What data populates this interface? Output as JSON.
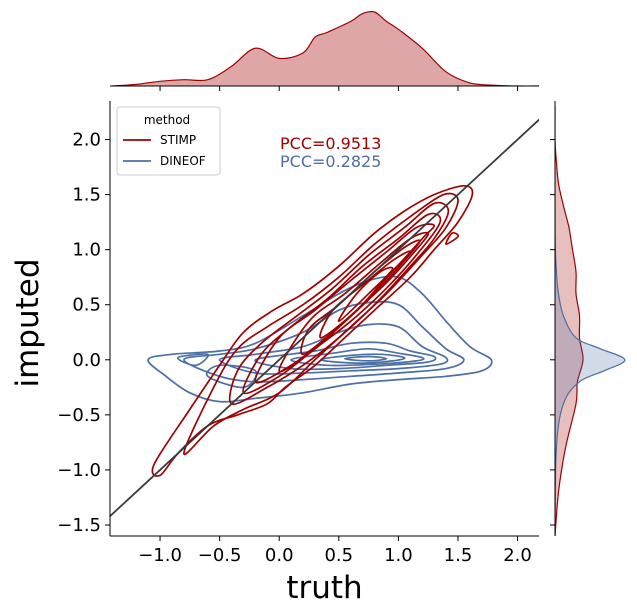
{
  "chart_data": {
    "type": "contour",
    "xlabel": "truth",
    "ylabel": "imputed",
    "xlim": [
      -1.42,
      2.18
    ],
    "ylim": [
      -1.6,
      2.35
    ],
    "x_ticks": [
      -1.0,
      -0.5,
      0.0,
      0.5,
      1.0,
      1.5,
      2.0
    ],
    "x_tick_labels": [
      "−1.0",
      "−0.5",
      "0.0",
      "0.5",
      "1.0",
      "1.5",
      "2.0"
    ],
    "y_ticks": [
      -1.5,
      -1.0,
      -0.5,
      0.0,
      0.5,
      1.0,
      1.5,
      2.0
    ],
    "y_tick_labels": [
      "−1.5",
      "−1.0",
      "−0.5",
      "0.0",
      "0.5",
      "1.0",
      "1.5",
      "2.0"
    ],
    "grid": false,
    "reference_line": {
      "slope": 1,
      "intercept": 0,
      "color": "#3a3a3a"
    },
    "legend": {
      "title": "method",
      "placement": "top-left"
    },
    "annotations": [
      {
        "text": "PCC=0.9513",
        "color": "#a00000"
      },
      {
        "text": "PCC=0.2825",
        "color": "#4c6fa5"
      }
    ],
    "series": [
      {
        "name": "STIMP",
        "color": "#a00000",
        "contours": [
          [
            [
              -1.05,
              -0.95
            ],
            [
              -1.0,
              -1.05
            ],
            [
              -0.85,
              -0.85
            ],
            [
              -0.6,
              -0.6
            ],
            [
              -0.35,
              -0.5
            ],
            [
              -0.1,
              -0.4
            ],
            [
              0.05,
              -0.25
            ],
            [
              0.3,
              -0.05
            ],
            [
              0.55,
              0.2
            ],
            [
              0.8,
              0.45
            ],
            [
              1.1,
              0.75
            ],
            [
              1.3,
              1.0
            ],
            [
              1.5,
              1.25
            ],
            [
              1.62,
              1.5
            ],
            [
              1.55,
              1.58
            ],
            [
              1.3,
              1.5
            ],
            [
              1.05,
              1.35
            ],
            [
              0.8,
              1.15
            ],
            [
              0.5,
              0.85
            ],
            [
              0.2,
              0.6
            ],
            [
              -0.05,
              0.45
            ],
            [
              -0.3,
              0.25
            ],
            [
              -0.5,
              -0.05
            ],
            [
              -0.75,
              -0.45
            ],
            [
              -1.05,
              -0.95
            ]
          ],
          [
            [
              -0.8,
              -0.85
            ],
            [
              -0.55,
              -0.6
            ],
            [
              -0.3,
              -0.45
            ],
            [
              0.0,
              -0.3
            ],
            [
              0.3,
              0.0
            ],
            [
              0.6,
              0.3
            ],
            [
              0.9,
              0.6
            ],
            [
              1.2,
              0.95
            ],
            [
              1.4,
              1.2
            ],
            [
              1.5,
              1.45
            ],
            [
              1.38,
              1.5
            ],
            [
              1.1,
              1.3
            ],
            [
              0.8,
              1.05
            ],
            [
              0.5,
              0.75
            ],
            [
              0.2,
              0.5
            ],
            [
              -0.1,
              0.3
            ],
            [
              -0.35,
              0.1
            ],
            [
              -0.55,
              -0.25
            ],
            [
              -0.8,
              -0.85
            ]
          ],
          [
            [
              -0.4,
              -0.4
            ],
            [
              -0.1,
              -0.25
            ],
            [
              0.2,
              -0.05
            ],
            [
              0.5,
              0.2
            ],
            [
              0.8,
              0.5
            ],
            [
              1.1,
              0.85
            ],
            [
              1.3,
              1.1
            ],
            [
              1.42,
              1.35
            ],
            [
              1.3,
              1.42
            ],
            [
              1.05,
              1.2
            ],
            [
              0.75,
              0.95
            ],
            [
              0.45,
              0.65
            ],
            [
              0.15,
              0.4
            ],
            [
              -0.15,
              0.15
            ],
            [
              -0.35,
              -0.1
            ],
            [
              -0.4,
              -0.4
            ]
          ],
          [
            [
              -0.3,
              -0.3
            ],
            [
              0.0,
              -0.15
            ],
            [
              0.3,
              0.1
            ],
            [
              0.6,
              0.35
            ],
            [
              0.9,
              0.65
            ],
            [
              1.15,
              0.95
            ],
            [
              1.35,
              1.25
            ],
            [
              1.25,
              1.32
            ],
            [
              1.0,
              1.1
            ],
            [
              0.7,
              0.85
            ],
            [
              0.4,
              0.55
            ],
            [
              0.1,
              0.3
            ],
            [
              -0.15,
              0.05
            ],
            [
              -0.3,
              -0.3
            ]
          ],
          [
            [
              -0.2,
              -0.2
            ],
            [
              0.1,
              -0.05
            ],
            [
              0.4,
              0.2
            ],
            [
              0.7,
              0.5
            ],
            [
              0.95,
              0.8
            ],
            [
              1.2,
              1.1
            ],
            [
              1.3,
              1.22
            ],
            [
              1.15,
              1.2
            ],
            [
              0.9,
              0.98
            ],
            [
              0.6,
              0.72
            ],
            [
              0.3,
              0.45
            ],
            [
              0.0,
              0.2
            ],
            [
              -0.2,
              -0.2
            ]
          ],
          [
            [
              0.0,
              -0.1
            ],
            [
              0.3,
              0.1
            ],
            [
              0.6,
              0.4
            ],
            [
              0.9,
              0.7
            ],
            [
              1.15,
              1.0
            ],
            [
              1.25,
              1.15
            ],
            [
              1.1,
              1.1
            ],
            [
              0.85,
              0.88
            ],
            [
              0.55,
              0.6
            ],
            [
              0.25,
              0.35
            ],
            [
              0.0,
              -0.1
            ]
          ],
          [
            [
              0.2,
              0.05
            ],
            [
              0.5,
              0.3
            ],
            [
              0.8,
              0.6
            ],
            [
              1.05,
              0.9
            ],
            [
              1.18,
              1.08
            ],
            [
              1.05,
              1.02
            ],
            [
              0.8,
              0.8
            ],
            [
              0.5,
              0.5
            ],
            [
              0.25,
              0.28
            ],
            [
              0.2,
              0.05
            ]
          ],
          [
            [
              0.35,
              0.2
            ],
            [
              0.65,
              0.45
            ],
            [
              0.9,
              0.75
            ],
            [
              1.1,
              0.98
            ],
            [
              0.95,
              0.9
            ],
            [
              0.7,
              0.68
            ],
            [
              0.45,
              0.45
            ],
            [
              0.35,
              0.2
            ]
          ],
          [
            [
              0.5,
              0.35
            ],
            [
              0.75,
              0.6
            ],
            [
              0.95,
              0.82
            ],
            [
              0.85,
              0.8
            ],
            [
              0.65,
              0.6
            ],
            [
              0.5,
              0.35
            ]
          ],
          [
            [
              1.4,
              1.05
            ],
            [
              1.5,
              1.12
            ],
            [
              1.45,
              1.15
            ],
            [
              1.4,
              1.05
            ]
          ]
        ]
      },
      {
        "name": "DINEOF",
        "color": "#4c6fa5",
        "contours": [
          [
            [
              -1.1,
              0.0
            ],
            [
              -0.95,
              -0.15
            ],
            [
              -0.75,
              -0.3
            ],
            [
              -0.5,
              -0.38
            ],
            [
              -0.2,
              -0.35
            ],
            [
              0.2,
              -0.3
            ],
            [
              0.6,
              -0.22
            ],
            [
              1.0,
              -0.18
            ],
            [
              1.4,
              -0.15
            ],
            [
              1.7,
              -0.1
            ],
            [
              1.78,
              0.0
            ],
            [
              1.6,
              0.12
            ],
            [
              1.4,
              0.35
            ],
            [
              1.2,
              0.6
            ],
            [
              1.0,
              0.75
            ],
            [
              0.75,
              0.72
            ],
            [
              0.5,
              0.6
            ],
            [
              0.2,
              0.4
            ],
            [
              -0.2,
              0.15
            ],
            [
              -0.5,
              0.08
            ],
            [
              -0.9,
              0.05
            ],
            [
              -1.1,
              0.0
            ]
          ],
          [
            [
              -0.8,
              0.0
            ],
            [
              -0.5,
              -0.15
            ],
            [
              -0.2,
              -0.2
            ],
            [
              0.2,
              -0.18
            ],
            [
              0.6,
              -0.15
            ],
            [
              1.0,
              -0.12
            ],
            [
              1.4,
              -0.08
            ],
            [
              1.55,
              0.0
            ],
            [
              1.4,
              0.1
            ],
            [
              1.2,
              0.3
            ],
            [
              1.0,
              0.5
            ],
            [
              0.75,
              0.52
            ],
            [
              0.5,
              0.45
            ],
            [
              0.2,
              0.25
            ],
            [
              -0.2,
              0.1
            ],
            [
              -0.5,
              0.05
            ],
            [
              -0.8,
              0.0
            ]
          ],
          [
            [
              -0.5,
              0.0
            ],
            [
              -0.2,
              -0.12
            ],
            [
              0.2,
              -0.12
            ],
            [
              0.6,
              -0.1
            ],
            [
              1.0,
              -0.08
            ],
            [
              1.35,
              -0.04
            ],
            [
              1.4,
              0.02
            ],
            [
              1.2,
              0.12
            ],
            [
              1.0,
              0.3
            ],
            [
              0.75,
              0.32
            ],
            [
              0.5,
              0.25
            ],
            [
              0.2,
              0.12
            ],
            [
              -0.2,
              0.05
            ],
            [
              -0.5,
              0.0
            ]
          ],
          [
            [
              -0.2,
              0.0
            ],
            [
              0.1,
              -0.08
            ],
            [
              0.5,
              -0.08
            ],
            [
              0.9,
              -0.05
            ],
            [
              1.25,
              -0.02
            ],
            [
              1.3,
              0.03
            ],
            [
              1.1,
              0.08
            ],
            [
              0.9,
              0.15
            ],
            [
              0.6,
              0.15
            ],
            [
              0.3,
              0.08
            ],
            [
              -0.2,
              0.0
            ]
          ],
          [
            [
              0.1,
              0.0
            ],
            [
              0.4,
              -0.05
            ],
            [
              0.8,
              -0.04
            ],
            [
              1.15,
              -0.01
            ],
            [
              1.2,
              0.02
            ],
            [
              1.0,
              0.06
            ],
            [
              0.75,
              0.1
            ],
            [
              0.45,
              0.06
            ],
            [
              0.1,
              0.0
            ]
          ],
          [
            [
              0.35,
              0.0
            ],
            [
              0.65,
              -0.03
            ],
            [
              0.95,
              -0.01
            ],
            [
              1.05,
              0.02
            ],
            [
              0.85,
              0.05
            ],
            [
              0.6,
              0.04
            ],
            [
              0.35,
              0.0
            ]
          ],
          [
            [
              0.55,
              0.01
            ],
            [
              0.75,
              -0.01
            ],
            [
              0.9,
              0.01
            ],
            [
              0.75,
              0.03
            ],
            [
              0.55,
              0.01
            ]
          ],
          [
            [
              -0.6,
              -0.15
            ],
            [
              -0.3,
              -0.25
            ],
            [
              -0.2,
              -0.1
            ],
            [
              -0.5,
              -0.05
            ],
            [
              -0.6,
              -0.15
            ]
          ],
          [
            [
              -0.85,
              0.02
            ],
            [
              -0.7,
              -0.05
            ],
            [
              -0.6,
              0.05
            ],
            [
              -0.85,
              0.02
            ]
          ]
        ]
      }
    ],
    "marginal_x": [
      {
        "name": "STIMP",
        "x": [
          -1.4,
          -1.2,
          -1.0,
          -0.8,
          -0.6,
          -0.4,
          -0.2,
          0.0,
          0.2,
          0.3,
          0.4,
          0.6,
          0.7,
          0.8,
          0.9,
          1.0,
          1.2,
          1.4,
          1.6,
          1.8,
          2.0,
          2.2
        ],
        "density": [
          0.0,
          0.02,
          0.06,
          0.08,
          0.08,
          0.25,
          0.48,
          0.35,
          0.42,
          0.62,
          0.68,
          0.82,
          0.92,
          0.94,
          0.82,
          0.72,
          0.48,
          0.18,
          0.04,
          0.01,
          0.0,
          0.0
        ]
      }
    ],
    "marginal_y": [
      {
        "name": "STIMP",
        "y": [
          -1.6,
          -1.2,
          -0.8,
          -0.4,
          -0.2,
          0.0,
          0.2,
          0.4,
          0.6,
          0.8,
          1.0,
          1.2,
          1.4,
          1.6,
          1.8,
          2.0,
          2.3
        ],
        "density": [
          0.0,
          0.05,
          0.15,
          0.3,
          0.32,
          0.4,
          0.35,
          0.35,
          0.3,
          0.3,
          0.25,
          0.2,
          0.12,
          0.05,
          0.02,
          0.0,
          0.0
        ]
      },
      {
        "name": "DINEOF",
        "y": [
          -1.6,
          -0.8,
          -0.4,
          -0.2,
          -0.1,
          0.0,
          0.1,
          0.2,
          0.4,
          0.6,
          0.8,
          1.2,
          2.3
        ],
        "density": [
          0.0,
          0.02,
          0.12,
          0.35,
          0.7,
          1.0,
          0.65,
          0.3,
          0.12,
          0.05,
          0.02,
          0.0,
          0.0
        ]
      }
    ]
  }
}
